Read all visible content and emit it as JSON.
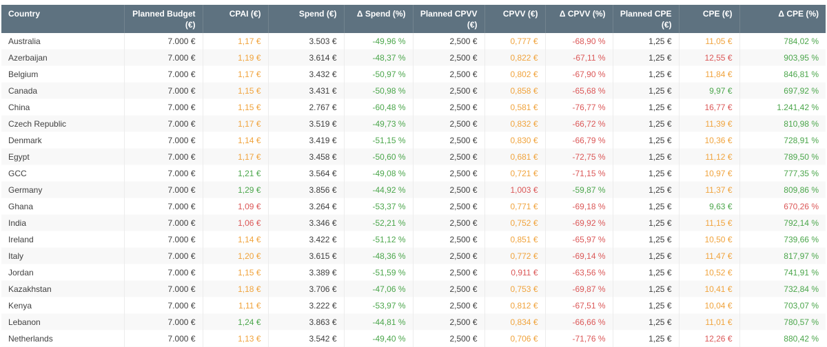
{
  "colors": {
    "header_bg": "#5e7280",
    "header_text": "#ffffff",
    "header_divider": "#73848f",
    "grid_line": "#ececec",
    "row_alt": "#f8f8f8",
    "dark": "#404040",
    "orange": "#f0a33c",
    "green": "#4ba64b",
    "red": "#db5757"
  },
  "table": {
    "columns": [
      {
        "key": "country",
        "label": "Country",
        "align": "left"
      },
      {
        "key": "planned-budget",
        "label": "Planned Budget (€)",
        "align": "right"
      },
      {
        "key": "cpai",
        "label": "CPAI (€)",
        "align": "right"
      },
      {
        "key": "spend",
        "label": "Spend (€)",
        "align": "right"
      },
      {
        "key": "delta-spend",
        "label": "Δ Spend (%)",
        "align": "right"
      },
      {
        "key": "planned-cpvv",
        "label": "Planned CPVV (€)",
        "align": "right"
      },
      {
        "key": "cpvv",
        "label": "CPVV (€)",
        "align": "right"
      },
      {
        "key": "delta-cpvv",
        "label": "Δ CPVV (%)",
        "align": "right"
      },
      {
        "key": "planned-cpe",
        "label": "Planned CPE (€)",
        "align": "right"
      },
      {
        "key": "cpe",
        "label": "CPE (€)",
        "align": "right"
      },
      {
        "key": "delta-cpe",
        "label": "Δ CPE (%)",
        "align": "right"
      }
    ],
    "rows": [
      {
        "country": "Australia",
        "cells": [
          [
            "7.000 €",
            "dark"
          ],
          [
            "1,17 €",
            "orange"
          ],
          [
            "3.503 €",
            "dark"
          ],
          [
            "-49,96 %",
            "green"
          ],
          [
            "2,500 €",
            "dark"
          ],
          [
            "0,777 €",
            "orange"
          ],
          [
            "-68,90 %",
            "red"
          ],
          [
            "1,25 €",
            "dark"
          ],
          [
            "11,05 €",
            "orange"
          ],
          [
            "784,02 %",
            "green"
          ]
        ]
      },
      {
        "country": "Azerbaijan",
        "cells": [
          [
            "7.000 €",
            "dark"
          ],
          [
            "1,19 €",
            "orange"
          ],
          [
            "3.614 €",
            "dark"
          ],
          [
            "-48,37 %",
            "green"
          ],
          [
            "2,500 €",
            "dark"
          ],
          [
            "0,822 €",
            "orange"
          ],
          [
            "-67,11 %",
            "red"
          ],
          [
            "1,25 €",
            "dark"
          ],
          [
            "12,55 €",
            "red"
          ],
          [
            "903,95 %",
            "green"
          ]
        ]
      },
      {
        "country": "Belgium",
        "cells": [
          [
            "7.000 €",
            "dark"
          ],
          [
            "1,17 €",
            "orange"
          ],
          [
            "3.432 €",
            "dark"
          ],
          [
            "-50,97 %",
            "green"
          ],
          [
            "2,500 €",
            "dark"
          ],
          [
            "0,802 €",
            "orange"
          ],
          [
            "-67,90 %",
            "red"
          ],
          [
            "1,25 €",
            "dark"
          ],
          [
            "11,84 €",
            "orange"
          ],
          [
            "846,81 %",
            "green"
          ]
        ]
      },
      {
        "country": "Canada",
        "cells": [
          [
            "7.000 €",
            "dark"
          ],
          [
            "1,15 €",
            "orange"
          ],
          [
            "3.431 €",
            "dark"
          ],
          [
            "-50,98 %",
            "green"
          ],
          [
            "2,500 €",
            "dark"
          ],
          [
            "0,858 €",
            "orange"
          ],
          [
            "-65,68 %",
            "red"
          ],
          [
            "1,25 €",
            "dark"
          ],
          [
            "9,97 €",
            "green"
          ],
          [
            "697,92 %",
            "green"
          ]
        ]
      },
      {
        "country": "China",
        "cells": [
          [
            "7.000 €",
            "dark"
          ],
          [
            "1,15 €",
            "orange"
          ],
          [
            "2.767 €",
            "dark"
          ],
          [
            "-60,48 %",
            "green"
          ],
          [
            "2,500 €",
            "dark"
          ],
          [
            "0,581 €",
            "orange"
          ],
          [
            "-76,77 %",
            "red"
          ],
          [
            "1,25 €",
            "dark"
          ],
          [
            "16,77 €",
            "red"
          ],
          [
            "1.241,42 %",
            "green"
          ]
        ]
      },
      {
        "country": "Czech Republic",
        "cells": [
          [
            "7.000 €",
            "dark"
          ],
          [
            "1,17 €",
            "orange"
          ],
          [
            "3.519 €",
            "dark"
          ],
          [
            "-49,73 %",
            "green"
          ],
          [
            "2,500 €",
            "dark"
          ],
          [
            "0,832 €",
            "orange"
          ],
          [
            "-66,72 %",
            "red"
          ],
          [
            "1,25 €",
            "dark"
          ],
          [
            "11,39 €",
            "orange"
          ],
          [
            "810,98 %",
            "green"
          ]
        ]
      },
      {
        "country": "Denmark",
        "cells": [
          [
            "7.000 €",
            "dark"
          ],
          [
            "1,14 €",
            "orange"
          ],
          [
            "3.419 €",
            "dark"
          ],
          [
            "-51,15 %",
            "green"
          ],
          [
            "2,500 €",
            "dark"
          ],
          [
            "0,830 €",
            "orange"
          ],
          [
            "-66,79 %",
            "red"
          ],
          [
            "1,25 €",
            "dark"
          ],
          [
            "10,36 €",
            "orange"
          ],
          [
            "728,91 %",
            "green"
          ]
        ]
      },
      {
        "country": "Egypt",
        "cells": [
          [
            "7.000 €",
            "dark"
          ],
          [
            "1,17 €",
            "orange"
          ],
          [
            "3.458 €",
            "dark"
          ],
          [
            "-50,60 %",
            "green"
          ],
          [
            "2,500 €",
            "dark"
          ],
          [
            "0,681 €",
            "orange"
          ],
          [
            "-72,75 %",
            "red"
          ],
          [
            "1,25 €",
            "dark"
          ],
          [
            "11,12 €",
            "orange"
          ],
          [
            "789,50 %",
            "green"
          ]
        ]
      },
      {
        "country": "GCC",
        "cells": [
          [
            "7.000 €",
            "dark"
          ],
          [
            "1,21 €",
            "green"
          ],
          [
            "3.564 €",
            "dark"
          ],
          [
            "-49,08 %",
            "green"
          ],
          [
            "2,500 €",
            "dark"
          ],
          [
            "0,721 €",
            "orange"
          ],
          [
            "-71,15 %",
            "red"
          ],
          [
            "1,25 €",
            "dark"
          ],
          [
            "10,97 €",
            "orange"
          ],
          [
            "777,35 %",
            "green"
          ]
        ]
      },
      {
        "country": "Germany",
        "cells": [
          [
            "7.000 €",
            "dark"
          ],
          [
            "1,29 €",
            "green"
          ],
          [
            "3.856 €",
            "dark"
          ],
          [
            "-44,92 %",
            "green"
          ],
          [
            "2,500 €",
            "dark"
          ],
          [
            "1,003 €",
            "red"
          ],
          [
            "-59,87 %",
            "green"
          ],
          [
            "1,25 €",
            "dark"
          ],
          [
            "11,37 €",
            "orange"
          ],
          [
            "809,86 %",
            "green"
          ]
        ]
      },
      {
        "country": "Ghana",
        "cells": [
          [
            "7.000 €",
            "dark"
          ],
          [
            "1,09 €",
            "red"
          ],
          [
            "3.264 €",
            "dark"
          ],
          [
            "-53,37 %",
            "green"
          ],
          [
            "2,500 €",
            "dark"
          ],
          [
            "0,771 €",
            "orange"
          ],
          [
            "-69,18 %",
            "red"
          ],
          [
            "1,25 €",
            "dark"
          ],
          [
            "9,63 €",
            "green"
          ],
          [
            "670,26 %",
            "red"
          ]
        ]
      },
      {
        "country": "India",
        "cells": [
          [
            "7.000 €",
            "dark"
          ],
          [
            "1,06 €",
            "red"
          ],
          [
            "3.346 €",
            "dark"
          ],
          [
            "-52,21 %",
            "green"
          ],
          [
            "2,500 €",
            "dark"
          ],
          [
            "0,752 €",
            "orange"
          ],
          [
            "-69,92 %",
            "red"
          ],
          [
            "1,25 €",
            "dark"
          ],
          [
            "11,15 €",
            "orange"
          ],
          [
            "792,14 %",
            "green"
          ]
        ]
      },
      {
        "country": "Ireland",
        "cells": [
          [
            "7.000 €",
            "dark"
          ],
          [
            "1,14 €",
            "orange"
          ],
          [
            "3.422 €",
            "dark"
          ],
          [
            "-51,12 %",
            "green"
          ],
          [
            "2,500 €",
            "dark"
          ],
          [
            "0,851 €",
            "orange"
          ],
          [
            "-65,97 %",
            "red"
          ],
          [
            "1,25 €",
            "dark"
          ],
          [
            "10,50 €",
            "orange"
          ],
          [
            "739,66 %",
            "green"
          ]
        ]
      },
      {
        "country": "Italy",
        "cells": [
          [
            "7.000 €",
            "dark"
          ],
          [
            "1,20 €",
            "orange"
          ],
          [
            "3.615 €",
            "dark"
          ],
          [
            "-48,36 %",
            "green"
          ],
          [
            "2,500 €",
            "dark"
          ],
          [
            "0,772 €",
            "orange"
          ],
          [
            "-69,14 %",
            "red"
          ],
          [
            "1,25 €",
            "dark"
          ],
          [
            "11,47 €",
            "orange"
          ],
          [
            "817,97 %",
            "green"
          ]
        ]
      },
      {
        "country": "Jordan",
        "cells": [
          [
            "7.000 €",
            "dark"
          ],
          [
            "1,15 €",
            "orange"
          ],
          [
            "3.389 €",
            "dark"
          ],
          [
            "-51,59 %",
            "green"
          ],
          [
            "2,500 €",
            "dark"
          ],
          [
            "0,911 €",
            "red"
          ],
          [
            "-63,56 %",
            "red"
          ],
          [
            "1,25 €",
            "dark"
          ],
          [
            "10,52 €",
            "orange"
          ],
          [
            "741,91 %",
            "green"
          ]
        ]
      },
      {
        "country": "Kazakhstan",
        "cells": [
          [
            "7.000 €",
            "dark"
          ],
          [
            "1,18 €",
            "orange"
          ],
          [
            "3.706 €",
            "dark"
          ],
          [
            "-47,06 %",
            "green"
          ],
          [
            "2,500 €",
            "dark"
          ],
          [
            "0,753 €",
            "orange"
          ],
          [
            "-69,87 %",
            "red"
          ],
          [
            "1,25 €",
            "dark"
          ],
          [
            "10,41 €",
            "orange"
          ],
          [
            "732,84 %",
            "green"
          ]
        ]
      },
      {
        "country": "Kenya",
        "cells": [
          [
            "7.000 €",
            "dark"
          ],
          [
            "1,11 €",
            "orange"
          ],
          [
            "3.222 €",
            "dark"
          ],
          [
            "-53,97 %",
            "green"
          ],
          [
            "2,500 €",
            "dark"
          ],
          [
            "0,812 €",
            "orange"
          ],
          [
            "-67,51 %",
            "red"
          ],
          [
            "1,25 €",
            "dark"
          ],
          [
            "10,04 €",
            "orange"
          ],
          [
            "703,07 %",
            "green"
          ]
        ]
      },
      {
        "country": "Lebanon",
        "cells": [
          [
            "7.000 €",
            "dark"
          ],
          [
            "1,24 €",
            "green"
          ],
          [
            "3.863 €",
            "dark"
          ],
          [
            "-44,81 %",
            "green"
          ],
          [
            "2,500 €",
            "dark"
          ],
          [
            "0,834 €",
            "orange"
          ],
          [
            "-66,66 %",
            "red"
          ],
          [
            "1,25 €",
            "dark"
          ],
          [
            "11,01 €",
            "orange"
          ],
          [
            "780,57 %",
            "green"
          ]
        ]
      },
      {
        "country": "Netherlands",
        "cells": [
          [
            "7.000 €",
            "dark"
          ],
          [
            "1,13 €",
            "orange"
          ],
          [
            "3.542 €",
            "dark"
          ],
          [
            "-49,40 %",
            "green"
          ],
          [
            "2,500 €",
            "dark"
          ],
          [
            "0,706 €",
            "orange"
          ],
          [
            "-71,76 %",
            "red"
          ],
          [
            "1,25 €",
            "dark"
          ],
          [
            "12,26 €",
            "red"
          ],
          [
            "880,42 %",
            "green"
          ]
        ]
      }
    ]
  }
}
